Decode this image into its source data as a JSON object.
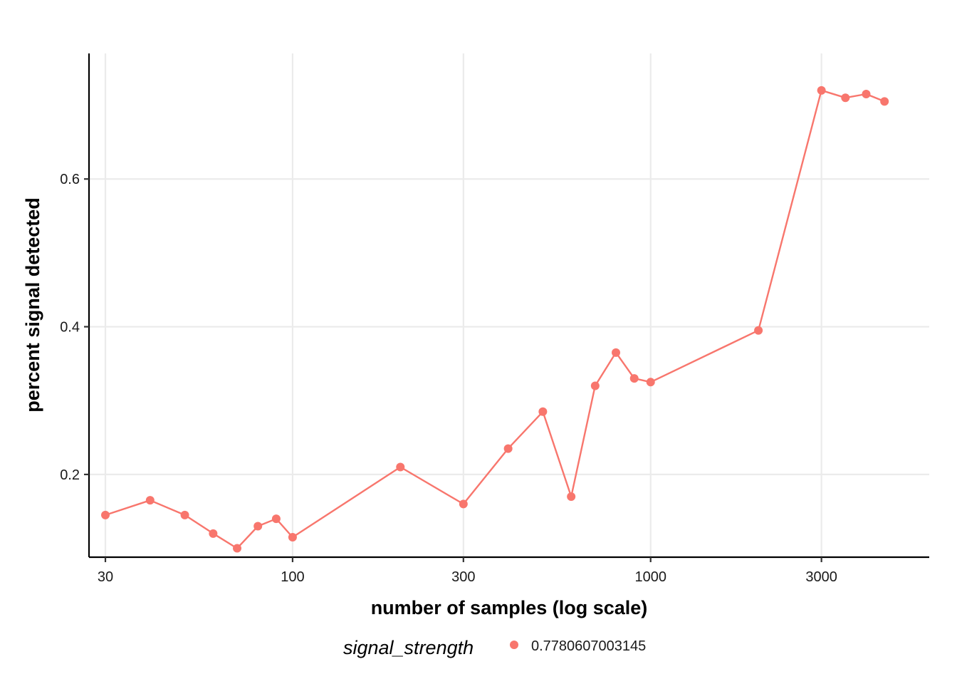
{
  "chart_data": {
    "type": "line",
    "xlabel": "number of samples (log scale)",
    "ylabel": "percent signal detected",
    "x_scale": "log10",
    "xlim": [
      27,
      6000
    ],
    "ylim": [
      0.088,
      0.77
    ],
    "x_ticks": [
      30,
      100,
      300,
      1000,
      3000
    ],
    "x_tick_labels": [
      "30",
      "100",
      "300",
      "1000",
      "3000"
    ],
    "y_ticks": [
      0.2,
      0.4,
      0.6
    ],
    "y_tick_labels": [
      "0.2",
      "0.4",
      "0.6"
    ],
    "grid": true,
    "legend_position": "bottom",
    "legend_title": "signal_strength",
    "series": [
      {
        "name": "0.7780607003145",
        "color": "#F8766D",
        "x": [
          30,
          40,
          50,
          60,
          70,
          80,
          90,
          100,
          200,
          300,
          400,
          500,
          600,
          700,
          800,
          900,
          1000,
          2000,
          3000,
          3500,
          4000,
          4500
        ],
        "y": [
          0.145,
          0.165,
          0.145,
          0.12,
          0.1,
          0.13,
          0.14,
          0.115,
          0.21,
          0.16,
          0.235,
          0.285,
          0.17,
          0.32,
          0.365,
          0.33,
          0.325,
          0.395,
          0.72,
          0.71,
          0.715,
          0.705
        ]
      }
    ]
  }
}
